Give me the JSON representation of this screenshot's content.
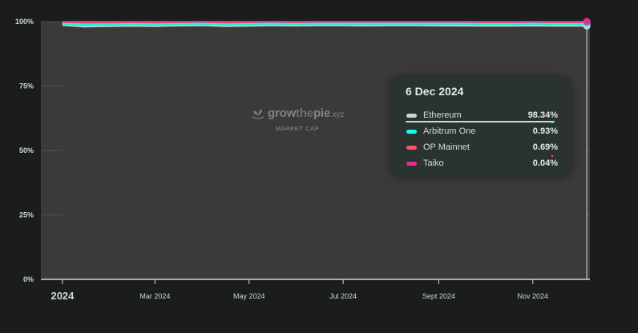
{
  "chart_data": {
    "type": "area",
    "stacked": "percent",
    "x": [
      "2024-01-01",
      "2024-01-15",
      "2024-02-01",
      "2024-02-15",
      "2024-03-01",
      "2024-03-15",
      "2024-04-01",
      "2024-04-15",
      "2024-05-01",
      "2024-05-15",
      "2024-06-01",
      "2024-06-15",
      "2024-07-01",
      "2024-07-15",
      "2024-08-01",
      "2024-08-15",
      "2024-09-01",
      "2024-09-15",
      "2024-10-01",
      "2024-10-15",
      "2024-11-01",
      "2024-11-15",
      "2024-12-01",
      "2024-12-06"
    ],
    "series": [
      {
        "name": "Ethereum",
        "color": "#cdd8d3",
        "values": [
          98.6,
          98.0,
          98.2,
          98.3,
          98.2,
          98.4,
          98.5,
          98.2,
          98.3,
          98.5,
          98.4,
          98.5,
          98.5,
          98.4,
          98.5,
          98.5,
          98.4,
          98.4,
          98.3,
          98.3,
          98.4,
          98.3,
          98.3,
          98.34
        ]
      },
      {
        "name": "Arbitrum One",
        "color": "#1df7ef",
        "values": [
          0.7,
          1.0,
          0.9,
          0.9,
          0.9,
          0.8,
          0.8,
          0.9,
          0.9,
          0.8,
          0.8,
          0.8,
          0.8,
          0.9,
          0.8,
          0.8,
          0.9,
          0.9,
          0.9,
          0.9,
          0.9,
          0.9,
          0.9,
          0.93
        ]
      },
      {
        "name": "OP Mainnet",
        "color": "#fe5468",
        "values": [
          0.7,
          1.0,
          0.9,
          0.8,
          0.9,
          0.8,
          0.7,
          0.9,
          0.8,
          0.7,
          0.8,
          0.7,
          0.7,
          0.7,
          0.7,
          0.7,
          0.7,
          0.7,
          0.8,
          0.8,
          0.7,
          0.8,
          0.8,
          0.69
        ]
      },
      {
        "name": "Taiko",
        "color": "#e42e93",
        "values": [
          0.0,
          0.0,
          0.0,
          0.0,
          0.0,
          0.0,
          0.0,
          0.0,
          0.0,
          0.0,
          0.0,
          0.0,
          0.0,
          0.0,
          0.0,
          0.0,
          0.0,
          0.0,
          0.0,
          0.0,
          0.0,
          0.0,
          0.0,
          0.04
        ]
      }
    ],
    "xlim": [
      "2023-12-18",
      "2024-12-08"
    ],
    "ylim": [
      0,
      100
    ],
    "y_ticks": [
      {
        "value": 100,
        "label": "100%"
      },
      {
        "value": 75,
        "label": "75%"
      },
      {
        "value": 50,
        "label": "50%"
      },
      {
        "value": 25,
        "label": "25%"
      },
      {
        "value": 0,
        "label": "0%"
      }
    ],
    "x_ticks": [
      {
        "date": "2024-01-01",
        "label": "2024",
        "major": true
      },
      {
        "date": "2024-03-01",
        "label": "Mar 2024"
      },
      {
        "date": "2024-05-01",
        "label": "May 2024"
      },
      {
        "date": "2024-07-01",
        "label": "Jul 2024"
      },
      {
        "date": "2024-09-01",
        "label": "Sept 2024"
      },
      {
        "date": "2024-11-01",
        "label": "Nov 2024"
      }
    ],
    "grid": true,
    "legend": "tooltip"
  },
  "watermark": {
    "brand_prefix": "grow",
    "brand_mid": "the",
    "brand_suffix": "pie",
    "brand_tld": ".xyz",
    "subtitle": "MARKET CAP"
  },
  "tooltip": {
    "date": "6 Dec 2024",
    "rows": [
      {
        "name": "Ethereum",
        "value": "98.34%",
        "color": "#cdd8d3",
        "active": true
      },
      {
        "name": "Arbitrum One",
        "value": "0.93%",
        "color": "#1df7ef"
      },
      {
        "name": "OP Mainnet",
        "value": "0.69%",
        "color": "#fe5468"
      },
      {
        "name": "Taiko",
        "value": "0.04%",
        "color": "#e42e93"
      }
    ]
  }
}
